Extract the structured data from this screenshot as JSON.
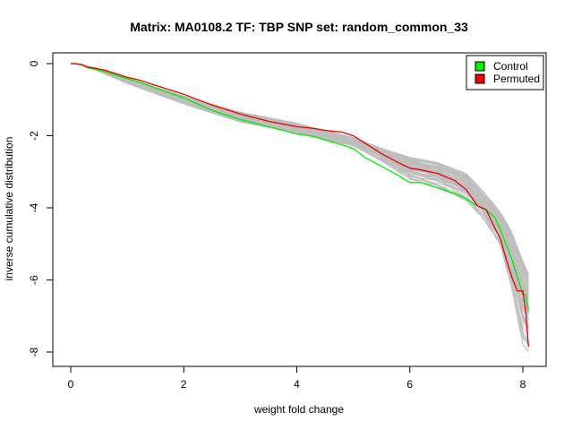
{
  "chart_data": {
    "type": "line",
    "title": "Matrix: MA0108.2 TF: TBP SNP set: random_common_33",
    "xlabel": "weight fold change",
    "ylabel": "inverse cumulative distribution",
    "xlim": [
      0,
      8.13
    ],
    "ylim": [
      -8,
      0
    ],
    "x_ticks": [
      "0",
      "2",
      "4",
      "6",
      "8"
    ],
    "y_ticks": [
      "0",
      "-2",
      "-4",
      "-6",
      "-8"
    ],
    "legend_position": "top-right",
    "legend": [
      {
        "label": "Control",
        "color": "#00ee00"
      },
      {
        "label": "Permuted",
        "color": "#ee0000"
      }
    ],
    "band_color": "#bebebe",
    "band": {
      "x": [
        0,
        0.2,
        0.3,
        0.4,
        1.0,
        2.0,
        3.0,
        4.0,
        5.0,
        5.5,
        6.0,
        6.5,
        7.0,
        7.3,
        7.6,
        7.8,
        7.9,
        8.0,
        8.1
      ],
      "upper": [
        0,
        -0.02,
        -0.08,
        -0.1,
        -0.4,
        -0.9,
        -1.35,
        -1.65,
        -2.05,
        -2.35,
        -2.6,
        -2.75,
        -3.05,
        -3.55,
        -4.1,
        -4.6,
        -5.0,
        -5.4,
        -5.8
      ],
      "lower": [
        0,
        -0.04,
        -0.12,
        -0.15,
        -0.55,
        -1.12,
        -1.62,
        -1.92,
        -2.28,
        -2.7,
        -3.2,
        -3.45,
        -3.8,
        -4.3,
        -5.0,
        -6.2,
        -7.0,
        -7.8,
        -8.0
      ]
    },
    "series": [
      {
        "name": "Control",
        "color": "#00ee00",
        "x": [
          0,
          0.1,
          0.2,
          0.3,
          0.4,
          0.6,
          0.8,
          1.0,
          1.2,
          1.5,
          2.0,
          2.5,
          3.0,
          3.5,
          4.0,
          4.3,
          4.5,
          4.8,
          5.0,
          5.2,
          5.5,
          5.8,
          6.0,
          6.2,
          6.5,
          6.8,
          7.0,
          7.2,
          7.35,
          7.5,
          7.6,
          7.7,
          7.8,
          7.9,
          8.0,
          8.05,
          8.1
        ],
        "y": [
          0,
          0,
          -0.04,
          -0.12,
          -0.15,
          -0.22,
          -0.32,
          -0.42,
          -0.5,
          -0.68,
          -0.95,
          -1.3,
          -1.55,
          -1.75,
          -1.95,
          -2.02,
          -2.12,
          -2.25,
          -2.35,
          -2.6,
          -2.85,
          -3.1,
          -3.3,
          -3.3,
          -3.45,
          -3.6,
          -3.75,
          -3.95,
          -4.05,
          -4.25,
          -4.6,
          -5.0,
          -5.4,
          -5.9,
          -6.4,
          -6.4,
          -6.85
        ]
      },
      {
        "name": "Permuted",
        "color": "#ee0000",
        "x": [
          0,
          0.1,
          0.2,
          0.3,
          0.4,
          0.6,
          0.8,
          1.0,
          1.2,
          1.5,
          2.0,
          2.5,
          3.0,
          3.5,
          4.0,
          4.3,
          4.5,
          4.8,
          5.0,
          5.2,
          5.5,
          5.8,
          6.0,
          6.2,
          6.5,
          6.8,
          7.0,
          7.2,
          7.35,
          7.5,
          7.6,
          7.7,
          7.8,
          7.9,
          8.0,
          8.05,
          8.1
        ],
        "y": [
          0,
          0,
          -0.03,
          -0.1,
          -0.12,
          -0.18,
          -0.28,
          -0.38,
          -0.45,
          -0.6,
          -0.85,
          -1.15,
          -1.4,
          -1.6,
          -1.75,
          -1.8,
          -1.85,
          -1.9,
          -2.0,
          -2.2,
          -2.5,
          -2.75,
          -2.9,
          -2.95,
          -3.05,
          -3.25,
          -3.5,
          -3.95,
          -4.05,
          -4.55,
          -4.85,
          -5.4,
          -5.9,
          -6.3,
          -6.3,
          -6.9,
          -7.85
        ]
      }
    ]
  }
}
